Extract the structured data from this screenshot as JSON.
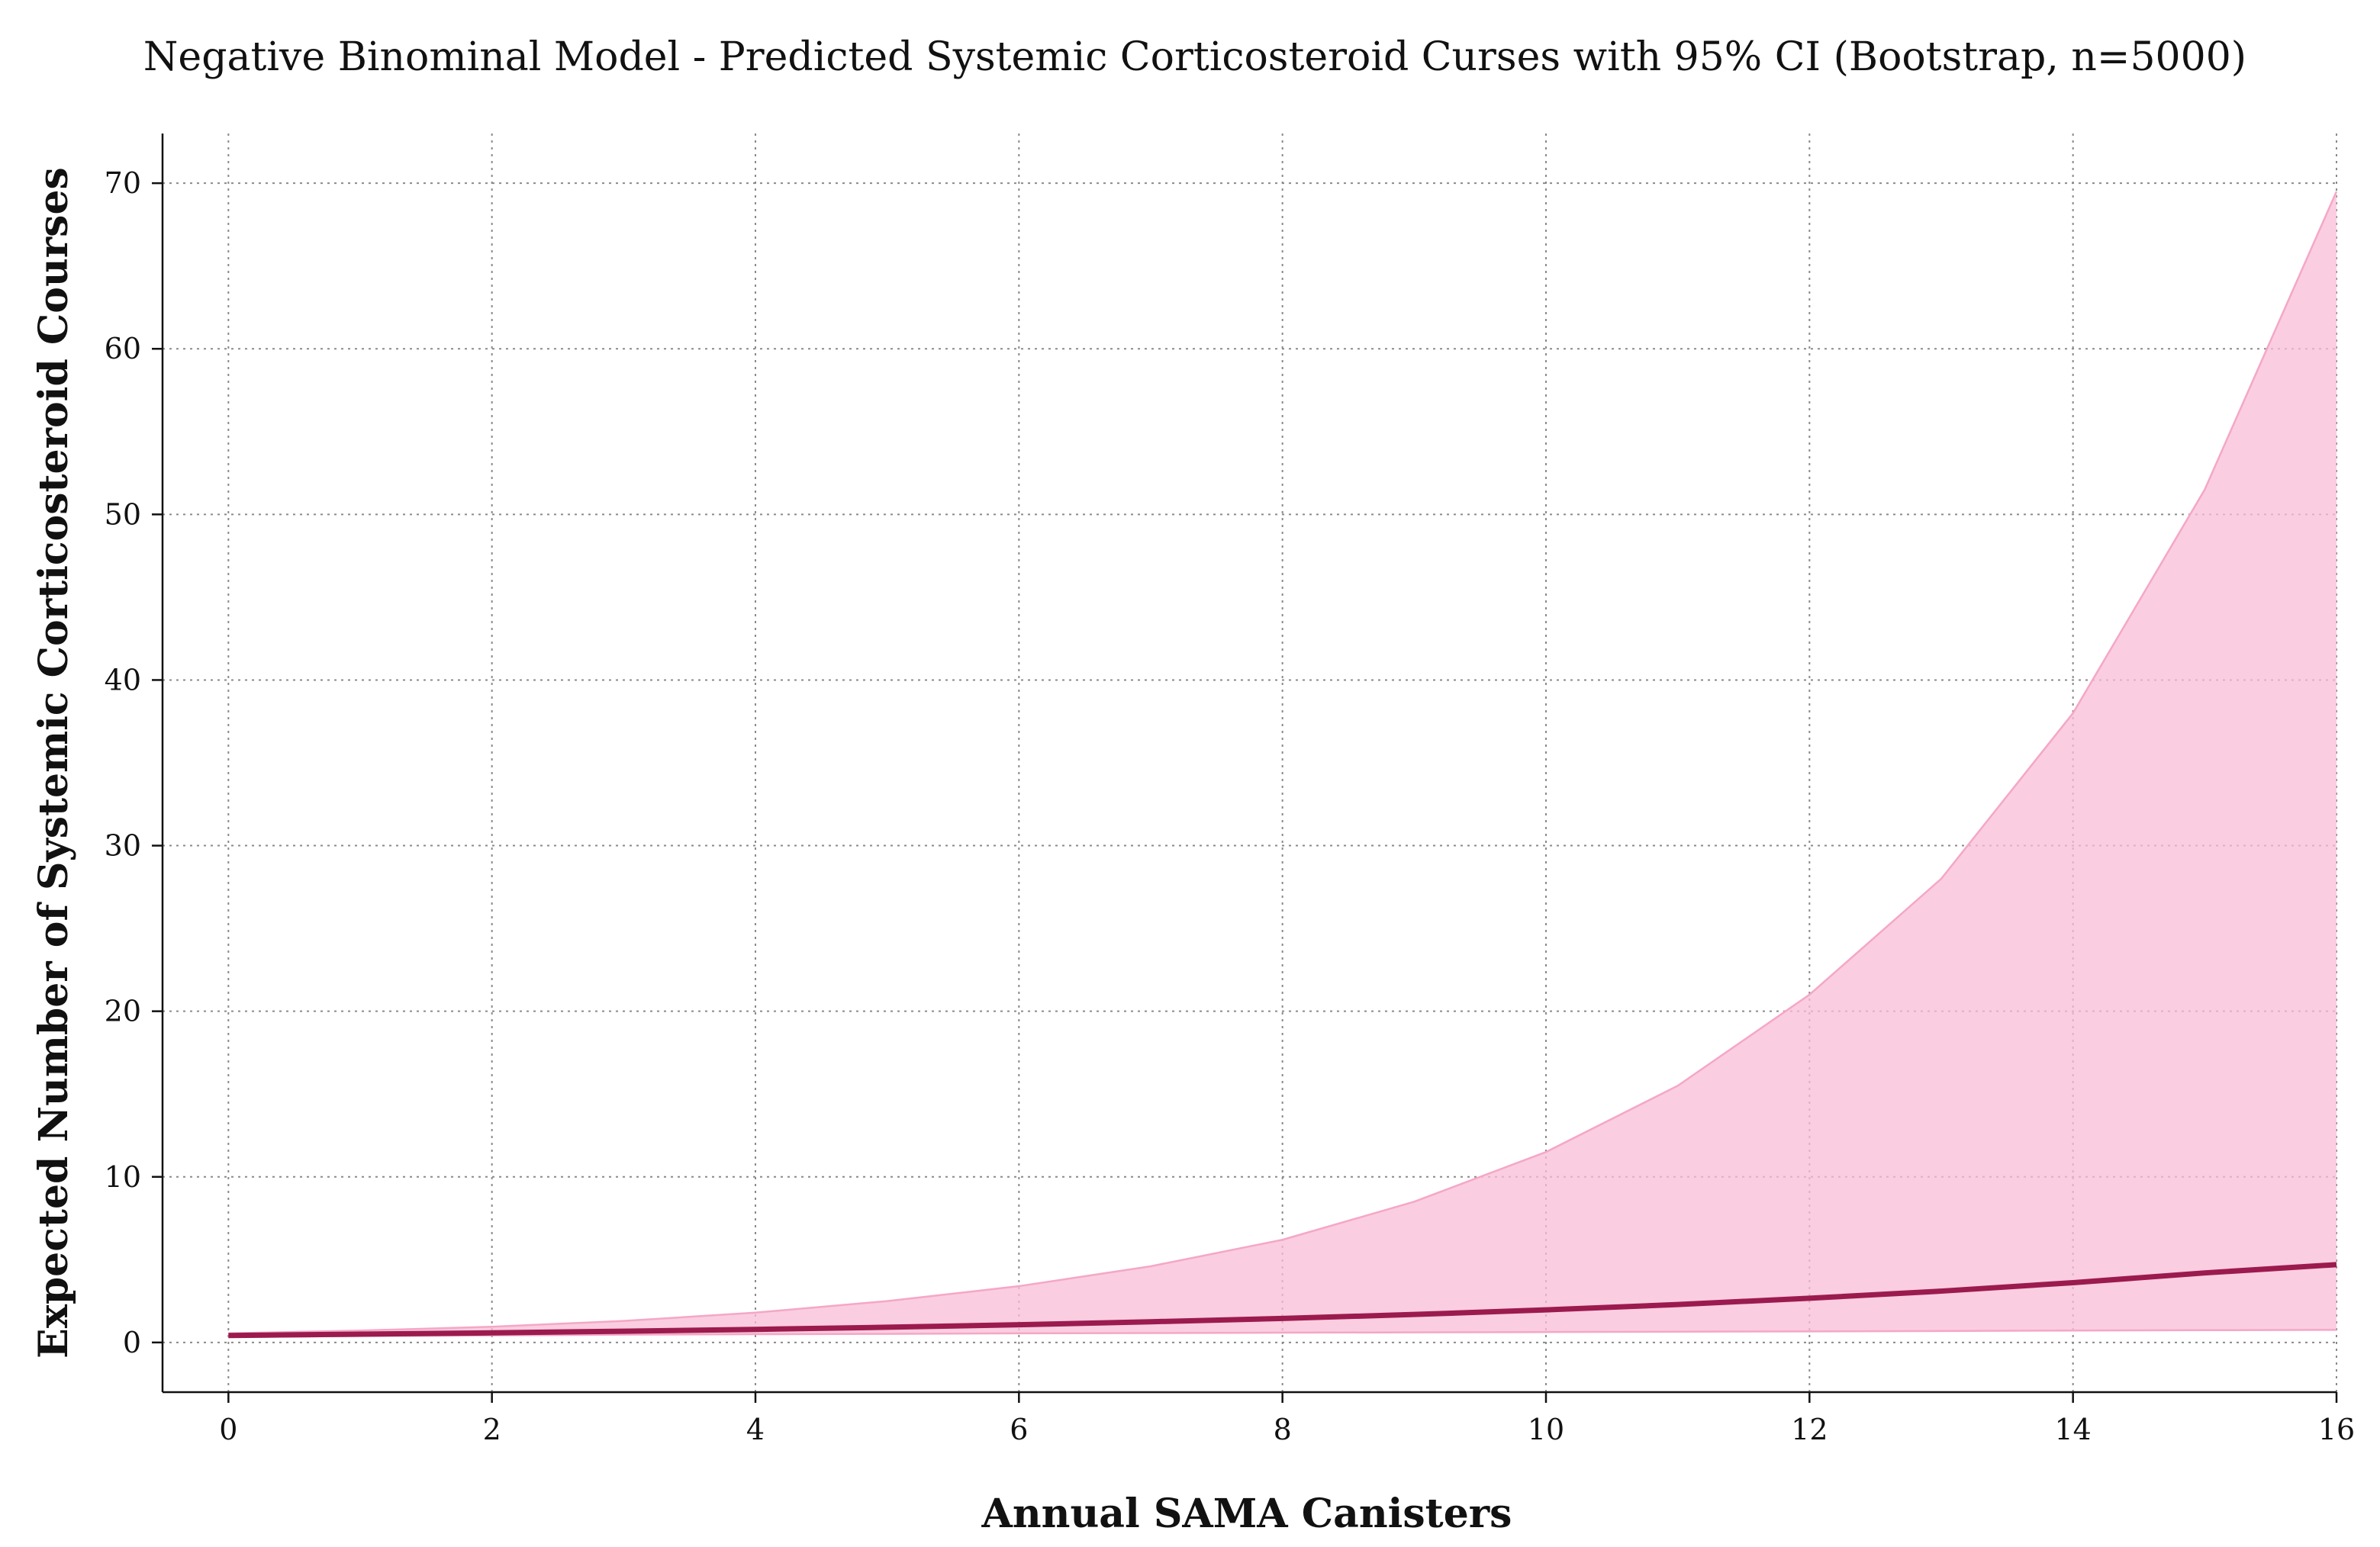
{
  "chart_data": {
    "type": "line",
    "title": "Negative Binominal Model - Predicted Systemic Corticosteroid Curses with 95% CI (Bootstrap, n=5000)",
    "xlabel": "Annual SAMA Canisters",
    "ylabel": "Expected Number of Systemic Corticosteroid Courses",
    "xlim": [
      -0.5,
      16
    ],
    "ylim": [
      -3,
      73
    ],
    "x_ticks": [
      0,
      2,
      4,
      6,
      8,
      10,
      12,
      14,
      16
    ],
    "y_ticks": [
      0,
      10,
      20,
      30,
      40,
      50,
      60,
      70
    ],
    "grid": true,
    "x": [
      0,
      1,
      2,
      3,
      4,
      5,
      6,
      7,
      8,
      9,
      10,
      11,
      12,
      13,
      14,
      15,
      16
    ],
    "series": [
      {
        "name": "",
        "role": "predicted",
        "color": "#9b1b4e",
        "values": [
          0.42,
          0.5,
          0.58,
          0.68,
          0.79,
          0.92,
          1.07,
          1.25,
          1.45,
          1.69,
          1.97,
          2.29,
          2.67,
          3.1,
          3.61,
          4.2,
          4.7
        ]
      }
    ],
    "ci_band": {
      "color": "#f9bcd6",
      "edge_color": "#f4a7c6",
      "lower": [
        0.33,
        0.39,
        0.43,
        0.47,
        0.5,
        0.52,
        0.55,
        0.57,
        0.59,
        0.61,
        0.63,
        0.65,
        0.67,
        0.69,
        0.72,
        0.74,
        0.76
      ],
      "upper": [
        0.55,
        0.72,
        0.95,
        1.3,
        1.8,
        2.5,
        3.4,
        4.6,
        6.2,
        8.5,
        11.5,
        15.5,
        21,
        28,
        38,
        51.5,
        69.5
      ]
    }
  }
}
